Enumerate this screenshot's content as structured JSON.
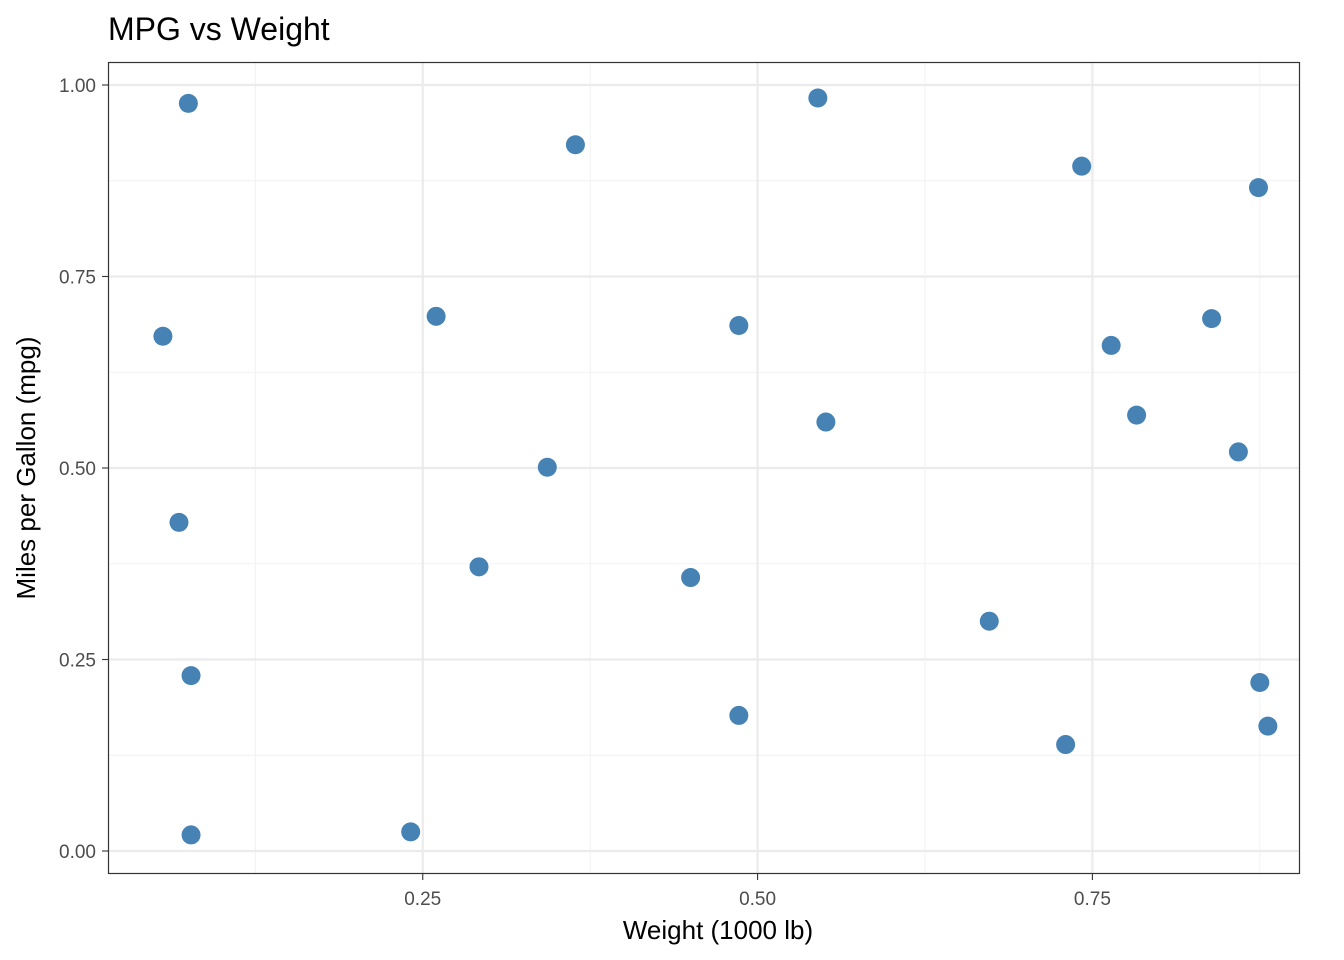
{
  "chart_data": {
    "type": "scatter",
    "title": "MPG vs Weight",
    "xlabel": "Weight (1000 lb)",
    "ylabel": "Miles per Gallon (mpg)",
    "xlim": [
      0.015,
      0.905
    ],
    "ylim": [
      -0.03,
      1.03
    ],
    "x_ticks": [
      0.25,
      0.5,
      0.75
    ],
    "x_tick_labels": [
      "0.25",
      "0.50",
      "0.75"
    ],
    "x_minor_ticks": [
      0.125,
      0.375,
      0.625,
      0.875
    ],
    "y_ticks": [
      0.0,
      0.25,
      0.5,
      0.75,
      1.0
    ],
    "y_tick_labels": [
      "0.00",
      "0.25",
      "0.50",
      "0.75",
      "1.00"
    ],
    "y_minor_ticks": [
      0.125,
      0.375,
      0.625,
      0.875
    ],
    "grid": true,
    "point_color": "#4682b4",
    "points": [
      {
        "x": 0.075,
        "y": 0.976
      },
      {
        "x": 0.056,
        "y": 0.672
      },
      {
        "x": 0.068,
        "y": 0.429
      },
      {
        "x": 0.077,
        "y": 0.229
      },
      {
        "x": 0.077,
        "y": 0.021
      },
      {
        "x": 0.364,
        "y": 0.922
      },
      {
        "x": 0.26,
        "y": 0.698
      },
      {
        "x": 0.343,
        "y": 0.501
      },
      {
        "x": 0.292,
        "y": 0.371
      },
      {
        "x": 0.241,
        "y": 0.025
      },
      {
        "x": 0.545,
        "y": 0.983
      },
      {
        "x": 0.486,
        "y": 0.686
      },
      {
        "x": 0.551,
        "y": 0.56
      },
      {
        "x": 0.45,
        "y": 0.357
      },
      {
        "x": 0.486,
        "y": 0.177
      },
      {
        "x": 0.673,
        "y": 0.3
      },
      {
        "x": 0.742,
        "y": 0.894
      },
      {
        "x": 0.764,
        "y": 0.66
      },
      {
        "x": 0.783,
        "y": 0.569
      },
      {
        "x": 0.73,
        "y": 0.139
      },
      {
        "x": 0.874,
        "y": 0.866
      },
      {
        "x": 0.839,
        "y": 0.695
      },
      {
        "x": 0.859,
        "y": 0.521
      },
      {
        "x": 0.875,
        "y": 0.22
      },
      {
        "x": 0.881,
        "y": 0.163
      }
    ]
  }
}
